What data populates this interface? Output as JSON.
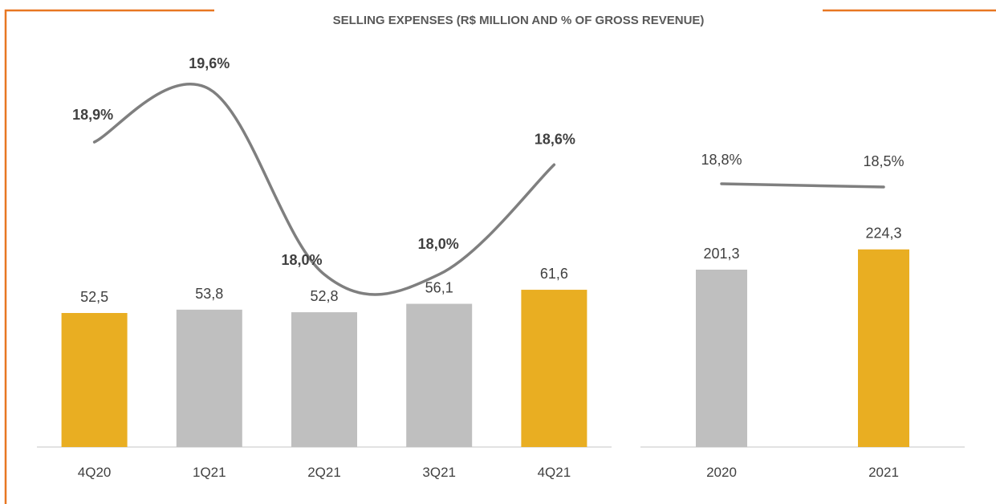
{
  "colors": {
    "frame": "#E87722",
    "highlight_bar": "#E9AE22",
    "regular_bar": "#BFBFBF",
    "line": "#7F7F7F",
    "axis": "#D9D9D9"
  },
  "chart_data": [
    {
      "type": "bar",
      "title": "SELLING EXPENSES (R$ MILLION AND % OF GROSS REVENUE)",
      "categories": [
        "4Q20",
        "1Q21",
        "2Q21",
        "3Q21",
        "4Q21"
      ],
      "series": [
        {
          "values": [
            52.5,
            53.8,
            52.8,
            56.1,
            61.6
          ],
          "labels": [
            "52,5",
            "53,8",
            "52,8",
            "56,1",
            "61,6"
          ],
          "highlight": [
            true,
            false,
            false,
            false,
            true
          ]
        },
        {
          "type": "line",
          "values": [
            18.9,
            19.6,
            18.0,
            18.0,
            18.6
          ],
          "labels": [
            "18,9%",
            "19,6%",
            "18,0%",
            "18,0%",
            "18,6%"
          ]
        }
      ]
    },
    {
      "type": "bar",
      "categories": [
        "2020",
        "2021"
      ],
      "series": [
        {
          "values": [
            201.3,
            224.3
          ],
          "labels": [
            "201,3",
            "224,3"
          ],
          "highlight": [
            false,
            true
          ]
        },
        {
          "type": "line",
          "values": [
            18.8,
            18.5
          ],
          "labels": [
            "18,8%",
            "18,5%"
          ]
        }
      ]
    }
  ]
}
